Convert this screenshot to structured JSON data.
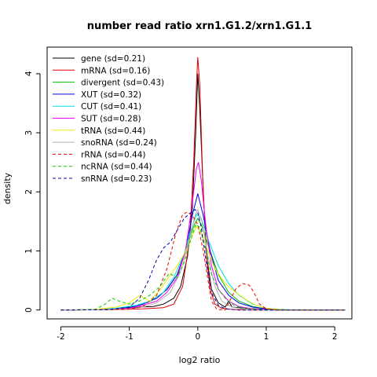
{
  "chart_data": {
    "type": "line",
    "title": "number read ratio xrn1.G1.2/xrn1.G1.1",
    "xlabel": "log2 ratio",
    "ylabel": "density",
    "xlim": [
      -2.2,
      2.25
    ],
    "ylim": [
      -0.15,
      4.45
    ],
    "xticks": [
      -2,
      -1,
      0,
      1,
      2
    ],
    "yticks": [
      0,
      1,
      2,
      3,
      4
    ],
    "grid": false,
    "legend_position": "top-left",
    "series": [
      {
        "name": "gene (sd=0.21)",
        "color": "#000000",
        "dash": false,
        "points": [
          [
            -2.0,
            0
          ],
          [
            -1.4,
            0.005
          ],
          [
            -1.1,
            0.02
          ],
          [
            -0.85,
            0.05
          ],
          [
            -0.65,
            0.06
          ],
          [
            -0.5,
            0.1
          ],
          [
            -0.35,
            0.2
          ],
          [
            -0.25,
            0.4
          ],
          [
            -0.15,
            0.9
          ],
          [
            -0.08,
            1.7
          ],
          [
            -0.03,
            3.0
          ],
          [
            0.0,
            4.0
          ],
          [
            0.03,
            3.4
          ],
          [
            0.08,
            2.0
          ],
          [
            0.13,
            0.9
          ],
          [
            0.2,
            0.35
          ],
          [
            0.3,
            0.12
          ],
          [
            0.4,
            0.05
          ],
          [
            0.45,
            0.15
          ],
          [
            0.5,
            0.05
          ],
          [
            0.7,
            0.03
          ],
          [
            1.0,
            0.01
          ],
          [
            1.5,
            0
          ],
          [
            2.15,
            0
          ]
        ]
      },
      {
        "name": "mRNA (sd=0.16)",
        "color": "#dd0000",
        "dash": false,
        "points": [
          [
            -2.0,
            0
          ],
          [
            -1.2,
            0.005
          ],
          [
            -0.8,
            0.02
          ],
          [
            -0.5,
            0.04
          ],
          [
            -0.35,
            0.1
          ],
          [
            -0.22,
            0.4
          ],
          [
            -0.12,
            1.2
          ],
          [
            -0.06,
            2.5
          ],
          [
            -0.02,
            3.8
          ],
          [
            0.0,
            4.28
          ],
          [
            0.03,
            3.8
          ],
          [
            0.07,
            2.3
          ],
          [
            0.12,
            1.0
          ],
          [
            0.18,
            0.35
          ],
          [
            0.25,
            0.1
          ],
          [
            0.35,
            0.03
          ],
          [
            0.5,
            0.01
          ],
          [
            0.8,
            0
          ],
          [
            2.15,
            0
          ]
        ]
      },
      {
        "name": "divergent (sd=0.43)",
        "color": "#00bb00",
        "dash": false,
        "points": [
          [
            -2.0,
            0
          ],
          [
            -1.3,
            0.01
          ],
          [
            -1.0,
            0.05
          ],
          [
            -0.8,
            0.1
          ],
          [
            -0.6,
            0.2
          ],
          [
            -0.45,
            0.35
          ],
          [
            -0.3,
            0.6
          ],
          [
            -0.15,
            1.1
          ],
          [
            -0.05,
            1.45
          ],
          [
            0.0,
            1.55
          ],
          [
            0.05,
            1.45
          ],
          [
            0.15,
            1.1
          ],
          [
            0.3,
            0.6
          ],
          [
            0.45,
            0.3
          ],
          [
            0.6,
            0.15
          ],
          [
            0.8,
            0.06
          ],
          [
            1.0,
            0.02
          ],
          [
            1.4,
            0
          ],
          [
            2.15,
            0
          ]
        ]
      },
      {
        "name": "XUT (sd=0.32)",
        "color": "#0000ee",
        "dash": false,
        "points": [
          [
            -2.0,
            0
          ],
          [
            -1.3,
            0.01
          ],
          [
            -1.0,
            0.04
          ],
          [
            -0.8,
            0.1
          ],
          [
            -0.6,
            0.2
          ],
          [
            -0.45,
            0.35
          ],
          [
            -0.3,
            0.6
          ],
          [
            -0.18,
            1.0
          ],
          [
            -0.08,
            1.6
          ],
          [
            0.0,
            1.97
          ],
          [
            0.08,
            1.6
          ],
          [
            0.18,
            1.0
          ],
          [
            0.3,
            0.5
          ],
          [
            0.45,
            0.25
          ],
          [
            0.6,
            0.12
          ],
          [
            0.8,
            0.05
          ],
          [
            1.0,
            0.02
          ],
          [
            1.3,
            0
          ],
          [
            2.15,
            0
          ]
        ]
      },
      {
        "name": "CUT (sd=0.41)",
        "color": "#00dddd",
        "dash": false,
        "points": [
          [
            -2.0,
            0
          ],
          [
            -1.5,
            0.005
          ],
          [
            -1.2,
            0.03
          ],
          [
            -0.9,
            0.08
          ],
          [
            -0.7,
            0.15
          ],
          [
            -0.5,
            0.3
          ],
          [
            -0.35,
            0.55
          ],
          [
            -0.2,
            0.95
          ],
          [
            -0.1,
            1.35
          ],
          [
            -0.02,
            1.62
          ],
          [
            0.05,
            1.55
          ],
          [
            0.15,
            1.2
          ],
          [
            0.3,
            0.75
          ],
          [
            0.45,
            0.45
          ],
          [
            0.6,
            0.25
          ],
          [
            0.8,
            0.1
          ],
          [
            1.0,
            0.03
          ],
          [
            1.3,
            0.005
          ],
          [
            2.15,
            0
          ]
        ]
      },
      {
        "name": "SUT (sd=0.28)",
        "color": "#ee00ee",
        "dash": false,
        "points": [
          [
            -2.0,
            0
          ],
          [
            -1.3,
            0.01
          ],
          [
            -1.0,
            0.03
          ],
          [
            -0.8,
            0.08
          ],
          [
            -0.6,
            0.15
          ],
          [
            -0.45,
            0.3
          ],
          [
            -0.3,
            0.55
          ],
          [
            -0.18,
            1.0
          ],
          [
            -0.08,
            1.8
          ],
          [
            -0.02,
            2.4
          ],
          [
            0.01,
            2.5
          ],
          [
            0.05,
            2.2
          ],
          [
            0.12,
            1.4
          ],
          [
            0.2,
            0.75
          ],
          [
            0.3,
            0.35
          ],
          [
            0.45,
            0.15
          ],
          [
            0.6,
            0.06
          ],
          [
            0.8,
            0.02
          ],
          [
            1.1,
            0
          ],
          [
            2.15,
            0
          ]
        ]
      },
      {
        "name": "tRNA (sd=0.44)",
        "color": "#eeee00",
        "dash": false,
        "points": [
          [
            -2.0,
            0
          ],
          [
            -1.5,
            0.01
          ],
          [
            -1.2,
            0.05
          ],
          [
            -1.0,
            0.12
          ],
          [
            -0.85,
            0.25
          ],
          [
            -0.7,
            0.15
          ],
          [
            -0.55,
            0.35
          ],
          [
            -0.4,
            0.6
          ],
          [
            -0.3,
            0.75
          ],
          [
            -0.2,
            0.95
          ],
          [
            -0.1,
            1.2
          ],
          [
            -0.02,
            1.42
          ],
          [
            0.05,
            1.3
          ],
          [
            0.15,
            1.0
          ],
          [
            0.25,
            0.7
          ],
          [
            0.4,
            0.45
          ],
          [
            0.55,
            0.3
          ],
          [
            0.7,
            0.18
          ],
          [
            0.85,
            0.08
          ],
          [
            1.0,
            0.03
          ],
          [
            1.3,
            0
          ],
          [
            2.15,
            0
          ]
        ]
      },
      {
        "name": "snoRNA (sd=0.24)",
        "color": "#b0b0b0",
        "dash": false,
        "points": [
          [
            -2.0,
            0
          ],
          [
            -1.3,
            0.005
          ],
          [
            -1.0,
            0.02
          ],
          [
            -0.8,
            0.05
          ],
          [
            -0.6,
            0.12
          ],
          [
            -0.4,
            0.3
          ],
          [
            -0.25,
            0.65
          ],
          [
            -0.12,
            1.2
          ],
          [
            -0.04,
            1.6
          ],
          [
            0.0,
            1.7
          ],
          [
            0.06,
            1.5
          ],
          [
            0.15,
            0.9
          ],
          [
            0.25,
            0.4
          ],
          [
            0.35,
            0.15
          ],
          [
            0.5,
            0.05
          ],
          [
            0.7,
            0.01
          ],
          [
            1.0,
            0
          ],
          [
            2.15,
            0
          ]
        ]
      },
      {
        "name": "rRNA (sd=0.44)",
        "color": "#ee0000",
        "dash": true,
        "points": [
          [
            -2.0,
            0
          ],
          [
            -1.4,
            0.005
          ],
          [
            -1.0,
            0.02
          ],
          [
            -0.8,
            0.06
          ],
          [
            -0.6,
            0.25
          ],
          [
            -0.45,
            0.7
          ],
          [
            -0.32,
            1.3
          ],
          [
            -0.22,
            1.62
          ],
          [
            -0.15,
            1.66
          ],
          [
            -0.08,
            1.6
          ],
          [
            0.0,
            1.45
          ],
          [
            0.08,
            1.0
          ],
          [
            0.15,
            0.5
          ],
          [
            0.2,
            0.15
          ],
          [
            0.28,
            0.01
          ],
          [
            0.4,
            0
          ],
          [
            0.55,
            0.35
          ],
          [
            0.65,
            0.45
          ],
          [
            0.75,
            0.42
          ],
          [
            0.82,
            0.3
          ],
          [
            0.9,
            0.1
          ],
          [
            1.0,
            0.02
          ],
          [
            1.2,
            0
          ],
          [
            2.15,
            0
          ]
        ]
      },
      {
        "name": "ncRNA (sd=0.44)",
        "color": "#00cc00",
        "dash": true,
        "points": [
          [
            -2.0,
            0
          ],
          [
            -1.5,
            0.01
          ],
          [
            -1.35,
            0.1
          ],
          [
            -1.25,
            0.2
          ],
          [
            -1.15,
            0.15
          ],
          [
            -1.0,
            0.1
          ],
          [
            -0.85,
            0.15
          ],
          [
            -0.7,
            0.25
          ],
          [
            -0.55,
            0.4
          ],
          [
            -0.42,
            0.62
          ],
          [
            -0.3,
            0.55
          ],
          [
            -0.2,
            0.8
          ],
          [
            -0.1,
            1.2
          ],
          [
            -0.03,
            1.45
          ],
          [
            0.03,
            1.4
          ],
          [
            0.12,
            1.0
          ],
          [
            0.2,
            0.6
          ],
          [
            0.3,
            0.35
          ],
          [
            0.4,
            0.2
          ],
          [
            0.5,
            0.1
          ],
          [
            0.6,
            0.05
          ],
          [
            0.75,
            0.02
          ],
          [
            1.0,
            0
          ],
          [
            2.15,
            0
          ]
        ]
      },
      {
        "name": "snRNA (sd=0.23)",
        "color": "#0000aa",
        "dash": true,
        "points": [
          [
            -2.0,
            0
          ],
          [
            -1.3,
            0.005
          ],
          [
            -1.0,
            0.05
          ],
          [
            -0.85,
            0.2
          ],
          [
            -0.72,
            0.5
          ],
          [
            -0.6,
            0.85
          ],
          [
            -0.5,
            1.05
          ],
          [
            -0.4,
            1.15
          ],
          [
            -0.3,
            1.35
          ],
          [
            -0.2,
            1.55
          ],
          [
            -0.1,
            1.65
          ],
          [
            -0.04,
            1.7
          ],
          [
            0.0,
            1.65
          ],
          [
            0.05,
            1.4
          ],
          [
            0.1,
            1.0
          ],
          [
            0.15,
            0.6
          ],
          [
            0.22,
            0.25
          ],
          [
            0.3,
            0.08
          ],
          [
            0.4,
            0.02
          ],
          [
            0.6,
            0
          ],
          [
            2.15,
            0
          ]
        ]
      }
    ]
  }
}
